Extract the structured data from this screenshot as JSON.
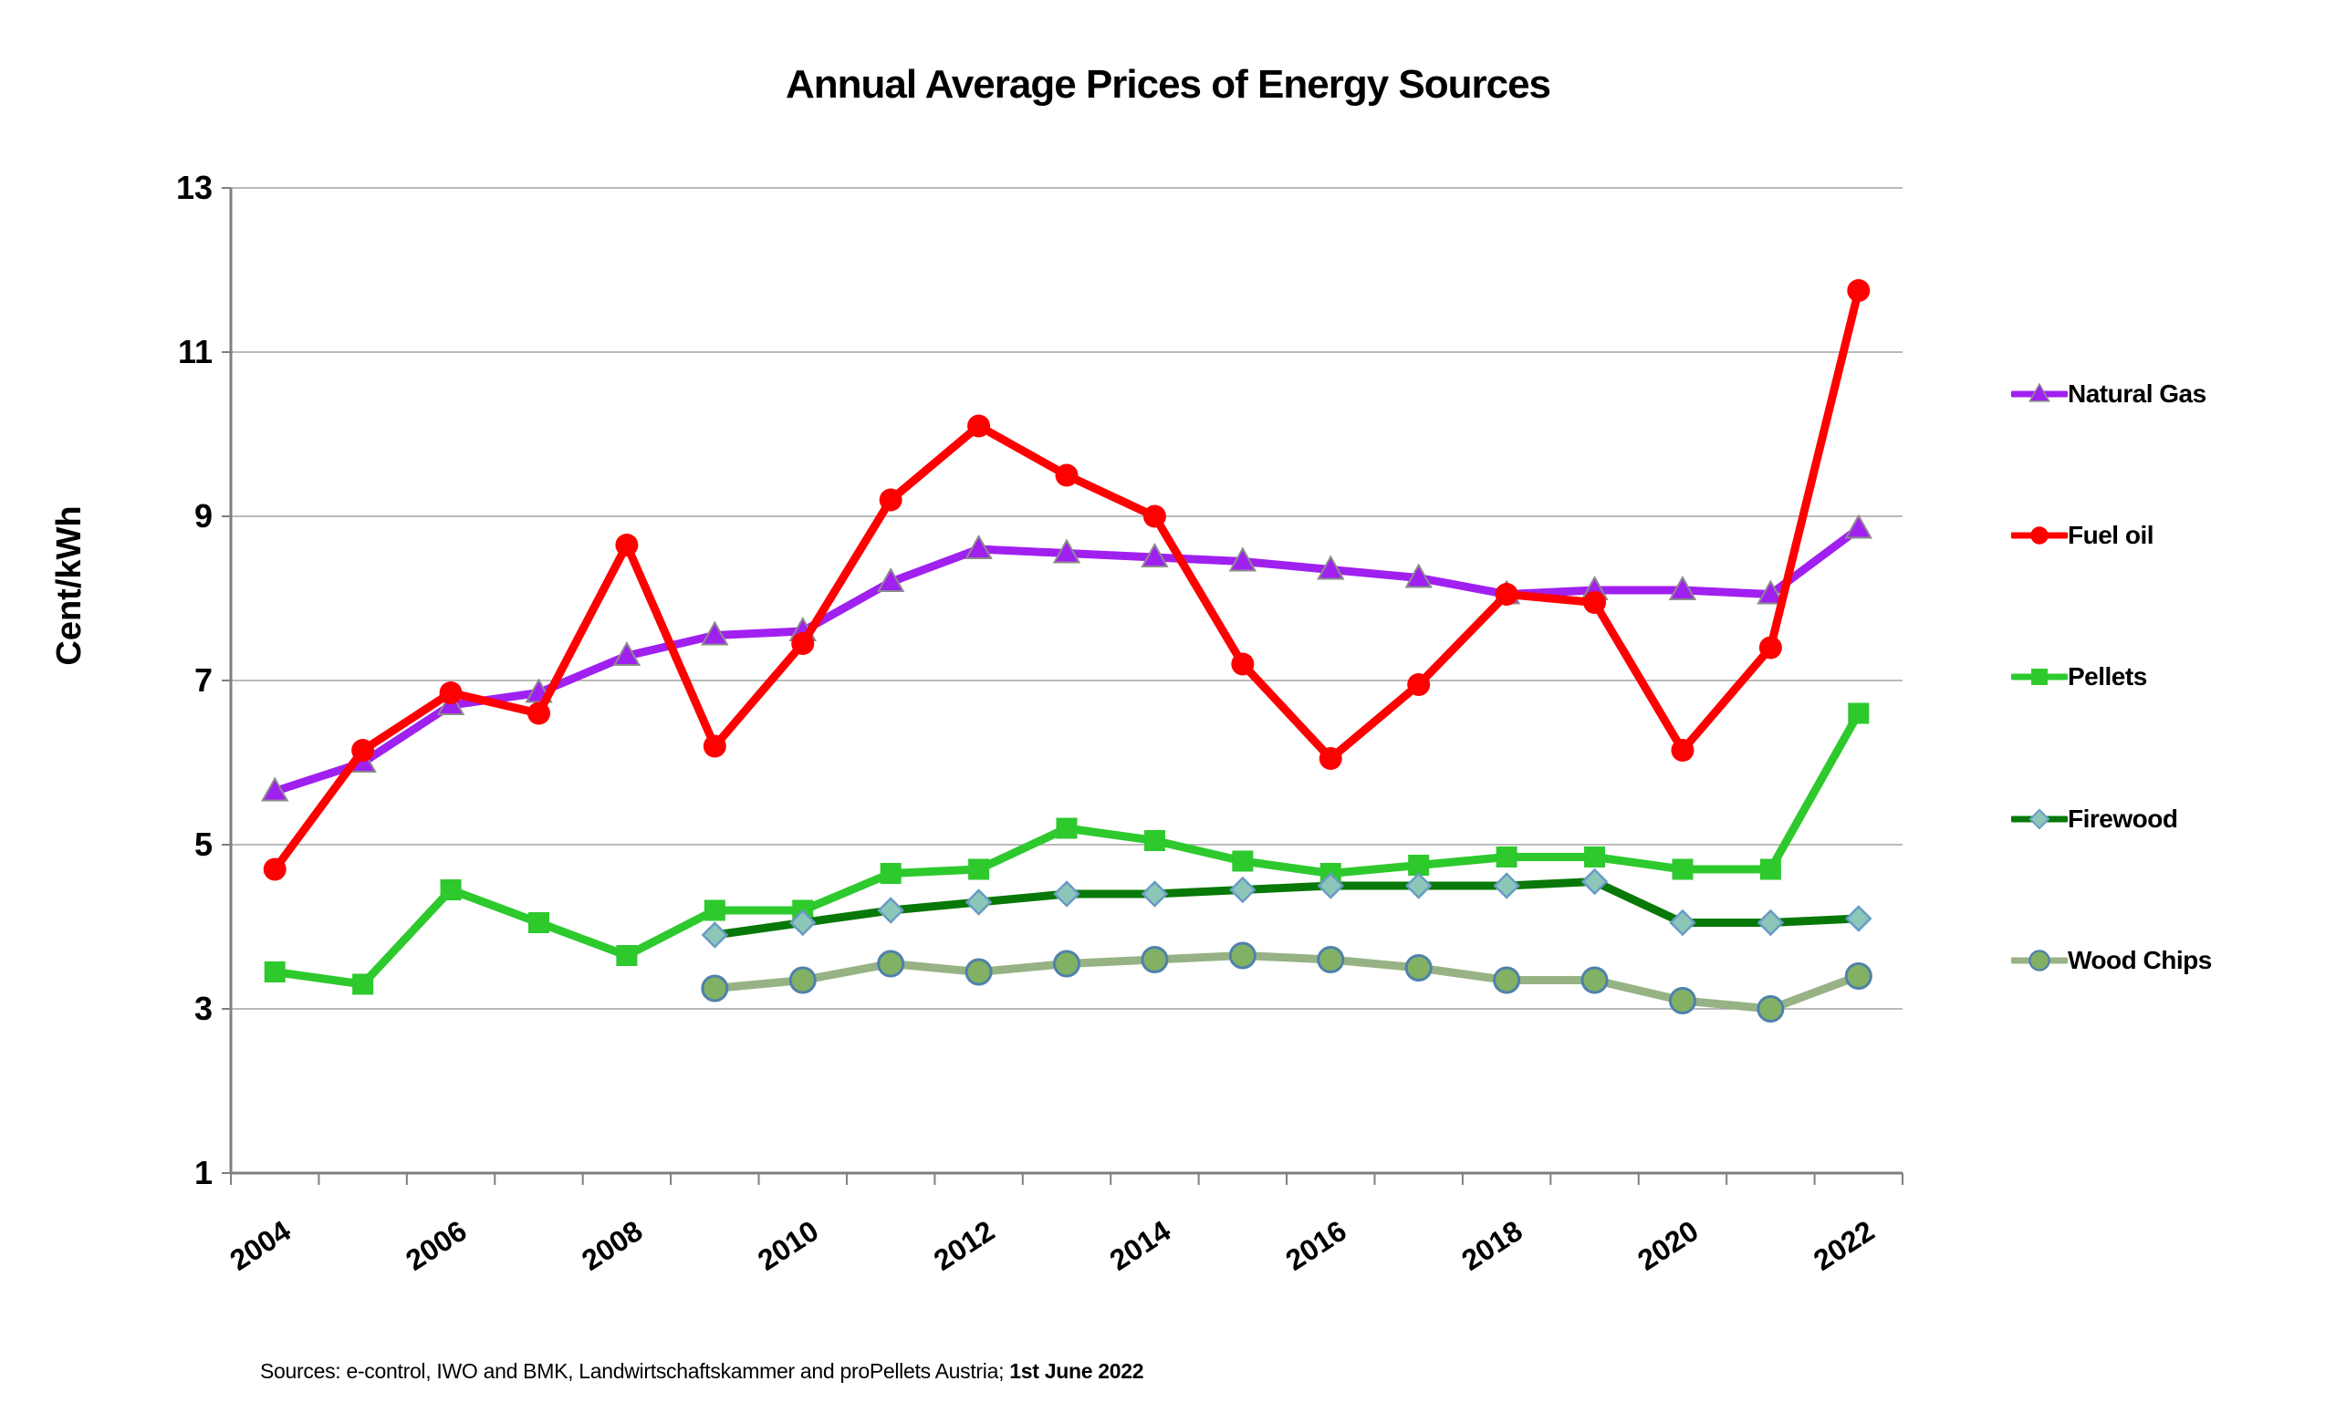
{
  "title": "Annual Average Prices of Energy Sources",
  "chart_data": {
    "type": "line",
    "title": "Annual Average Prices of Energy Sources",
    "ylabel": "Cent/kWh",
    "xlabel": "",
    "ylim": [
      1,
      13
    ],
    "yticks": [
      13,
      11,
      9,
      7,
      5,
      3,
      1
    ],
    "grid": "horizontal",
    "legend_position": "right",
    "x": [
      2004,
      2005,
      2006,
      2007,
      2008,
      2009,
      2010,
      2011,
      2012,
      2013,
      2014,
      2015,
      2016,
      2017,
      2018,
      2019,
      2020,
      2021,
      2022
    ],
    "xtick_labels": [
      "2004",
      "2006",
      "2008",
      "2010",
      "2012",
      "2014",
      "2016",
      "2018",
      "2020",
      "2022"
    ],
    "series": [
      {
        "name": "Natural Gas",
        "color": "#A020F0",
        "marker": "triangle",
        "values": [
          5.65,
          6.0,
          6.7,
          6.85,
          7.3,
          7.55,
          7.6,
          8.2,
          8.6,
          8.55,
          8.5,
          8.45,
          8.35,
          8.25,
          8.05,
          8.1,
          8.1,
          8.05,
          8.85
        ]
      },
      {
        "name": "Fuel oil",
        "color": "#FF0000",
        "marker": "circle",
        "values": [
          4.7,
          6.15,
          6.85,
          6.6,
          8.65,
          6.2,
          7.45,
          9.2,
          10.1,
          9.5,
          9.0,
          7.2,
          6.05,
          6.95,
          8.05,
          7.95,
          6.15,
          7.4,
          11.75
        ]
      },
      {
        "name": "Pellets",
        "color": "#2DC92D",
        "marker": "square",
        "values": [
          3.45,
          3.3,
          4.45,
          4.05,
          3.65,
          4.2,
          4.2,
          4.65,
          4.7,
          5.2,
          5.05,
          4.8,
          4.65,
          4.75,
          4.85,
          4.85,
          4.7,
          4.7,
          6.6
        ]
      },
      {
        "name": "Firewood",
        "color": "#087808",
        "marker": "diamond",
        "marker_fill": "#8CC6B8",
        "marker_stroke": "#689BC4",
        "values": [
          null,
          null,
          null,
          null,
          null,
          3.9,
          4.05,
          4.2,
          4.3,
          4.4,
          4.4,
          4.45,
          4.5,
          4.5,
          4.5,
          4.55,
          4.05,
          4.05,
          4.1
        ]
      },
      {
        "name": "Wood Chips",
        "color": "#97B284",
        "marker": "circle",
        "marker_fill": "#83B163",
        "marker_stroke": "#4E81AC",
        "values": [
          null,
          null,
          null,
          null,
          null,
          3.25,
          3.35,
          3.55,
          3.45,
          3.55,
          3.6,
          3.65,
          3.6,
          3.5,
          3.35,
          3.35,
          3.1,
          3.0,
          3.4
        ]
      }
    ],
    "colors": {
      "gridline": "#A3A3A3",
      "axis": "#7F7F7F"
    }
  },
  "footer": {
    "sources_prefix": "Sources: e-control, IWO and BMK, Landwirtschaftskammer and proPellets Austria; ",
    "sources_date": "1st June 2022"
  }
}
